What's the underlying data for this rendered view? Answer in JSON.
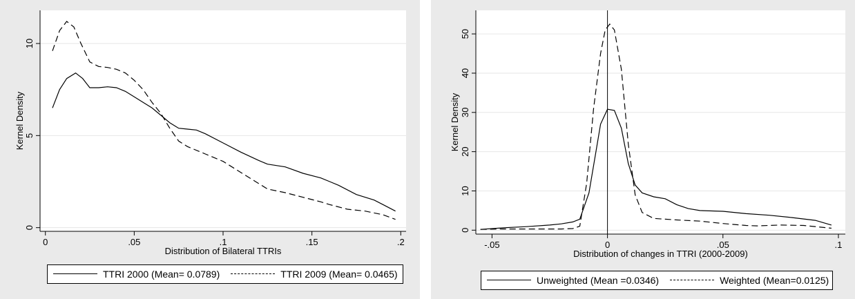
{
  "chart_data": [
    {
      "type": "line",
      "xlabel": "Distribution of Bilateral TTRIs",
      "ylabel": "Kernel Density",
      "xlim": [
        -0.003,
        0.203
      ],
      "ylim": [
        -0.2,
        11.8
      ],
      "xticks": [
        0,
        0.05,
        0.1,
        0.15,
        0.2
      ],
      "xtick_labels": [
        "0",
        ".05",
        ".1",
        ".15",
        ".2"
      ],
      "yticks": [
        0,
        5,
        10
      ],
      "ytick_labels": [
        "0",
        "5",
        "10"
      ],
      "grid": true,
      "legend_position": "bottom",
      "series": [
        {
          "name": "TTRI 2000 (Mean= 0.0789)",
          "style": "solid",
          "x": [
            0.004,
            0.008,
            0.012,
            0.017,
            0.021,
            0.025,
            0.03,
            0.035,
            0.04,
            0.045,
            0.05,
            0.055,
            0.06,
            0.065,
            0.07,
            0.075,
            0.08,
            0.085,
            0.09,
            0.1,
            0.11,
            0.12,
            0.125,
            0.135,
            0.145,
            0.155,
            0.16,
            0.165,
            0.175,
            0.185,
            0.19,
            0.197
          ],
          "y": [
            6.5,
            7.5,
            8.1,
            8.4,
            8.1,
            7.6,
            7.6,
            7.65,
            7.6,
            7.4,
            7.1,
            6.8,
            6.5,
            6.1,
            5.7,
            5.4,
            5.35,
            5.3,
            5.1,
            4.6,
            4.1,
            3.65,
            3.45,
            3.3,
            2.95,
            2.7,
            2.5,
            2.3,
            1.8,
            1.5,
            1.25,
            0.9
          ]
        },
        {
          "name": "TTRI 2009 (Mean= 0.0465)",
          "style": "dashed",
          "x": [
            0.004,
            0.008,
            0.012,
            0.016,
            0.02,
            0.025,
            0.03,
            0.035,
            0.04,
            0.045,
            0.05,
            0.055,
            0.06,
            0.065,
            0.07,
            0.075,
            0.08,
            0.09,
            0.1,
            0.11,
            0.12,
            0.125,
            0.135,
            0.145,
            0.155,
            0.16,
            0.17,
            0.18,
            0.19,
            0.197
          ],
          "y": [
            9.6,
            10.7,
            11.2,
            10.9,
            10.0,
            9.0,
            8.75,
            8.7,
            8.6,
            8.4,
            8.0,
            7.5,
            6.8,
            6.2,
            5.4,
            4.7,
            4.4,
            4.0,
            3.6,
            3.0,
            2.4,
            2.1,
            1.9,
            1.65,
            1.4,
            1.25,
            1.0,
            0.9,
            0.7,
            0.45
          ]
        }
      ]
    },
    {
      "type": "line",
      "xlabel": "Distribution of changes in TTRI (2000-2009)",
      "ylabel": "Kernel Density",
      "xlim": [
        -0.057,
        0.103
      ],
      "ylim": [
        -1,
        56
      ],
      "xticks": [
        -0.05,
        0,
        0.05,
        0.1
      ],
      "xtick_labels": [
        "-.05",
        "0",
        ".05",
        ".1"
      ],
      "yticks": [
        0,
        10,
        20,
        30,
        40,
        50
      ],
      "ytick_labels": [
        "0",
        "10",
        "20",
        "30",
        "40",
        "50"
      ],
      "vline_x": 0,
      "grid": true,
      "legend_position": "bottom",
      "series": [
        {
          "name": "Unweighted (Mean =0.0346)",
          "style": "solid",
          "x": [
            -0.055,
            -0.045,
            -0.035,
            -0.025,
            -0.02,
            -0.015,
            -0.012,
            -0.008,
            -0.005,
            -0.003,
            0,
            0.003,
            0.006,
            0.009,
            0.012,
            0.015,
            0.02,
            0.025,
            0.03,
            0.035,
            0.04,
            0.05,
            0.06,
            0.07,
            0.08,
            0.09,
            0.097
          ],
          "y": [
            0.2,
            0.6,
            0.9,
            1.3,
            1.6,
            2.1,
            2.8,
            9.5,
            20,
            27,
            30.8,
            30.5,
            26,
            17,
            11.5,
            9.5,
            8.5,
            8.0,
            6.5,
            5.5,
            5.0,
            4.8,
            4.2,
            3.8,
            3.2,
            2.5,
            1.3
          ]
        },
        {
          "name": "Weighted (Mean=0.0125)",
          "style": "dashed",
          "x": [
            -0.055,
            -0.045,
            -0.035,
            -0.025,
            -0.02,
            -0.015,
            -0.012,
            -0.009,
            -0.006,
            -0.003,
            -0.001,
            0.001,
            0.003,
            0.006,
            0.009,
            0.012,
            0.015,
            0.02,
            0.025,
            0.03,
            0.04,
            0.05,
            0.06,
            0.065,
            0.075,
            0.085,
            0.097
          ],
          "y": [
            0.2,
            0.3,
            0.3,
            0.3,
            0.3,
            0.4,
            1.0,
            12,
            31,
            45,
            51,
            52.5,
            51,
            41,
            22,
            9,
            4.5,
            3.0,
            2.8,
            2.6,
            2.3,
            1.7,
            1.2,
            1.1,
            1.3,
            1.2,
            0.5
          ]
        }
      ]
    }
  ]
}
